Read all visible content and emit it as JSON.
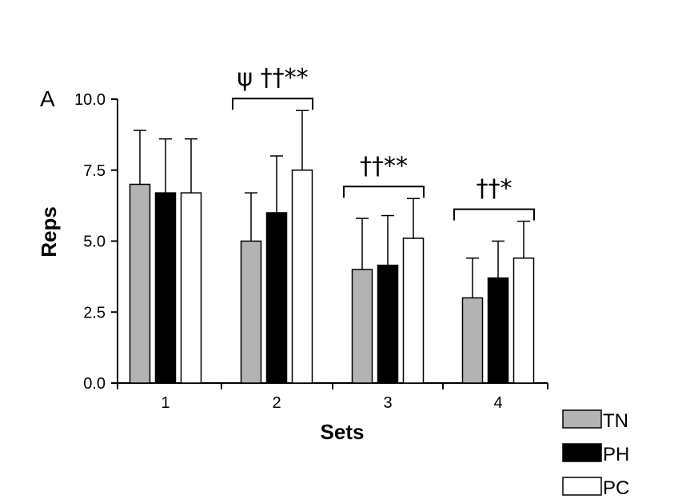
{
  "chart_data": {
    "type": "bar",
    "panel_label": "A",
    "xlabel": "Sets",
    "ylabel": "Reps",
    "categories": [
      "1",
      "2",
      "3",
      "4"
    ],
    "ylim": [
      0,
      10
    ],
    "yticks": [
      "0.0",
      "2.5",
      "5.0",
      "7.5",
      "10.0"
    ],
    "series": [
      {
        "name": "TN",
        "color": "#b3b3b3",
        "values": [
          7.0,
          5.0,
          4.0,
          3.0
        ],
        "errors": [
          1.9,
          1.7,
          1.8,
          1.4
        ]
      },
      {
        "name": "PH",
        "color": "#000000",
        "values": [
          6.7,
          6.0,
          4.15,
          3.7
        ],
        "errors": [
          1.9,
          2.0,
          1.75,
          1.3
        ]
      },
      {
        "name": "PC",
        "color": "#ffffff",
        "values": [
          6.7,
          7.5,
          5.1,
          4.4
        ],
        "errors": [
          1.9,
          2.1,
          1.4,
          1.3
        ]
      }
    ],
    "annotations": [
      {
        "category": "2",
        "text": "ψ ††**"
      },
      {
        "category": "3",
        "text": "††**"
      },
      {
        "category": "4",
        "text": "††*"
      }
    ],
    "legend_position": "bottom-right",
    "grid": false
  }
}
